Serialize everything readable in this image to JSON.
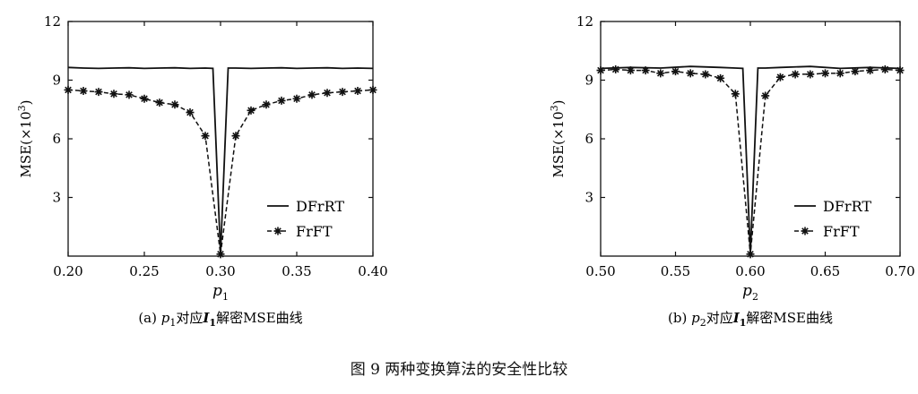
{
  "figure_caption": "图 9  两种变换算法的安全性比较",
  "chart_data": [
    {
      "type": "line",
      "panel_caption": "(a) p1对应I1解密MSE曲线",
      "caption_parts": {
        "label": "(a)",
        "var": "p",
        "var_sub": "1",
        "mid": "对应",
        "img": "I",
        "img_sub": "1",
        "tail": "解密MSE曲线"
      },
      "xlabel": {
        "var": "p",
        "sub": "1"
      },
      "ylabel": {
        "text": "MSE(×10",
        "sup": "3",
        "close": ")"
      },
      "xlim": [
        0.2,
        0.4
      ],
      "ylim": [
        0,
        12
      ],
      "xticks": [
        0.2,
        0.25,
        0.3,
        0.35,
        0.4
      ],
      "xtick_labels": [
        "0.20",
        "0.25",
        "0.30",
        "0.35",
        "0.40"
      ],
      "yticks": [
        3,
        6,
        9,
        12
      ],
      "ytick_labels": [
        "3",
        "6",
        "9",
        "12"
      ],
      "legend": "lower-right",
      "series": [
        {
          "name": "DFrRT",
          "style": "solid",
          "x": [
            0.2,
            0.21,
            0.22,
            0.23,
            0.24,
            0.25,
            0.26,
            0.27,
            0.28,
            0.29,
            0.295,
            0.3,
            0.305,
            0.31,
            0.32,
            0.33,
            0.34,
            0.35,
            0.36,
            0.37,
            0.38,
            0.39,
            0.4
          ],
          "y": [
            9.65,
            9.62,
            9.6,
            9.62,
            9.63,
            9.6,
            9.62,
            9.63,
            9.6,
            9.62,
            9.6,
            0.1,
            9.62,
            9.62,
            9.6,
            9.62,
            9.63,
            9.6,
            9.62,
            9.63,
            9.6,
            9.62,
            9.6
          ]
        },
        {
          "name": "FrFT",
          "style": "dashed-star",
          "x": [
            0.2,
            0.21,
            0.22,
            0.23,
            0.24,
            0.25,
            0.26,
            0.27,
            0.28,
            0.29,
            0.3,
            0.31,
            0.32,
            0.33,
            0.34,
            0.35,
            0.36,
            0.37,
            0.38,
            0.39,
            0.4
          ],
          "y": [
            8.5,
            8.45,
            8.4,
            8.3,
            8.25,
            8.05,
            7.85,
            7.75,
            7.35,
            6.15,
            0.1,
            6.15,
            7.45,
            7.75,
            7.95,
            8.05,
            8.25,
            8.35,
            8.4,
            8.45,
            8.5
          ]
        }
      ]
    },
    {
      "type": "line",
      "panel_caption": "(b) p2对应I1解密MSE曲线",
      "caption_parts": {
        "label": "(b)",
        "var": "p",
        "var_sub": "2",
        "mid": "对应",
        "img": "I",
        "img_sub": "1",
        "tail": "解密MSE曲线"
      },
      "xlabel": {
        "var": "p",
        "sub": "2"
      },
      "ylabel": {
        "text": "MSE(×10",
        "sup": "3",
        "close": ")"
      },
      "xlim": [
        0.5,
        0.7
      ],
      "ylim": [
        0,
        12
      ],
      "xticks": [
        0.5,
        0.55,
        0.6,
        0.65,
        0.7
      ],
      "xtick_labels": [
        "0.50",
        "0.55",
        "0.60",
        "0.65",
        "0.70"
      ],
      "yticks": [
        3,
        6,
        9,
        12
      ],
      "ytick_labels": [
        "3",
        "6",
        "9",
        "12"
      ],
      "legend": "lower-right",
      "series": [
        {
          "name": "DFrRT",
          "style": "solid",
          "x": [
            0.5,
            0.52,
            0.54,
            0.56,
            0.58,
            0.59,
            0.595,
            0.6,
            0.605,
            0.61,
            0.62,
            0.64,
            0.66,
            0.68,
            0.7
          ],
          "y": [
            9.6,
            9.65,
            9.62,
            9.7,
            9.65,
            9.62,
            9.6,
            0.1,
            9.62,
            9.62,
            9.65,
            9.7,
            9.6,
            9.65,
            9.6
          ],
          "_": null
        },
        {
          "name": "FrFT",
          "style": "dashed-star",
          "x": [
            0.5,
            0.51,
            0.52,
            0.53,
            0.54,
            0.55,
            0.56,
            0.57,
            0.58,
            0.59,
            0.6,
            0.61,
            0.62,
            0.63,
            0.64,
            0.65,
            0.66,
            0.67,
            0.68,
            0.69,
            0.7
          ],
          "y": [
            9.5,
            9.55,
            9.5,
            9.5,
            9.35,
            9.45,
            9.35,
            9.3,
            9.1,
            8.3,
            0.1,
            8.2,
            9.15,
            9.3,
            9.3,
            9.35,
            9.35,
            9.45,
            9.5,
            9.55,
            9.5
          ]
        }
      ]
    }
  ]
}
